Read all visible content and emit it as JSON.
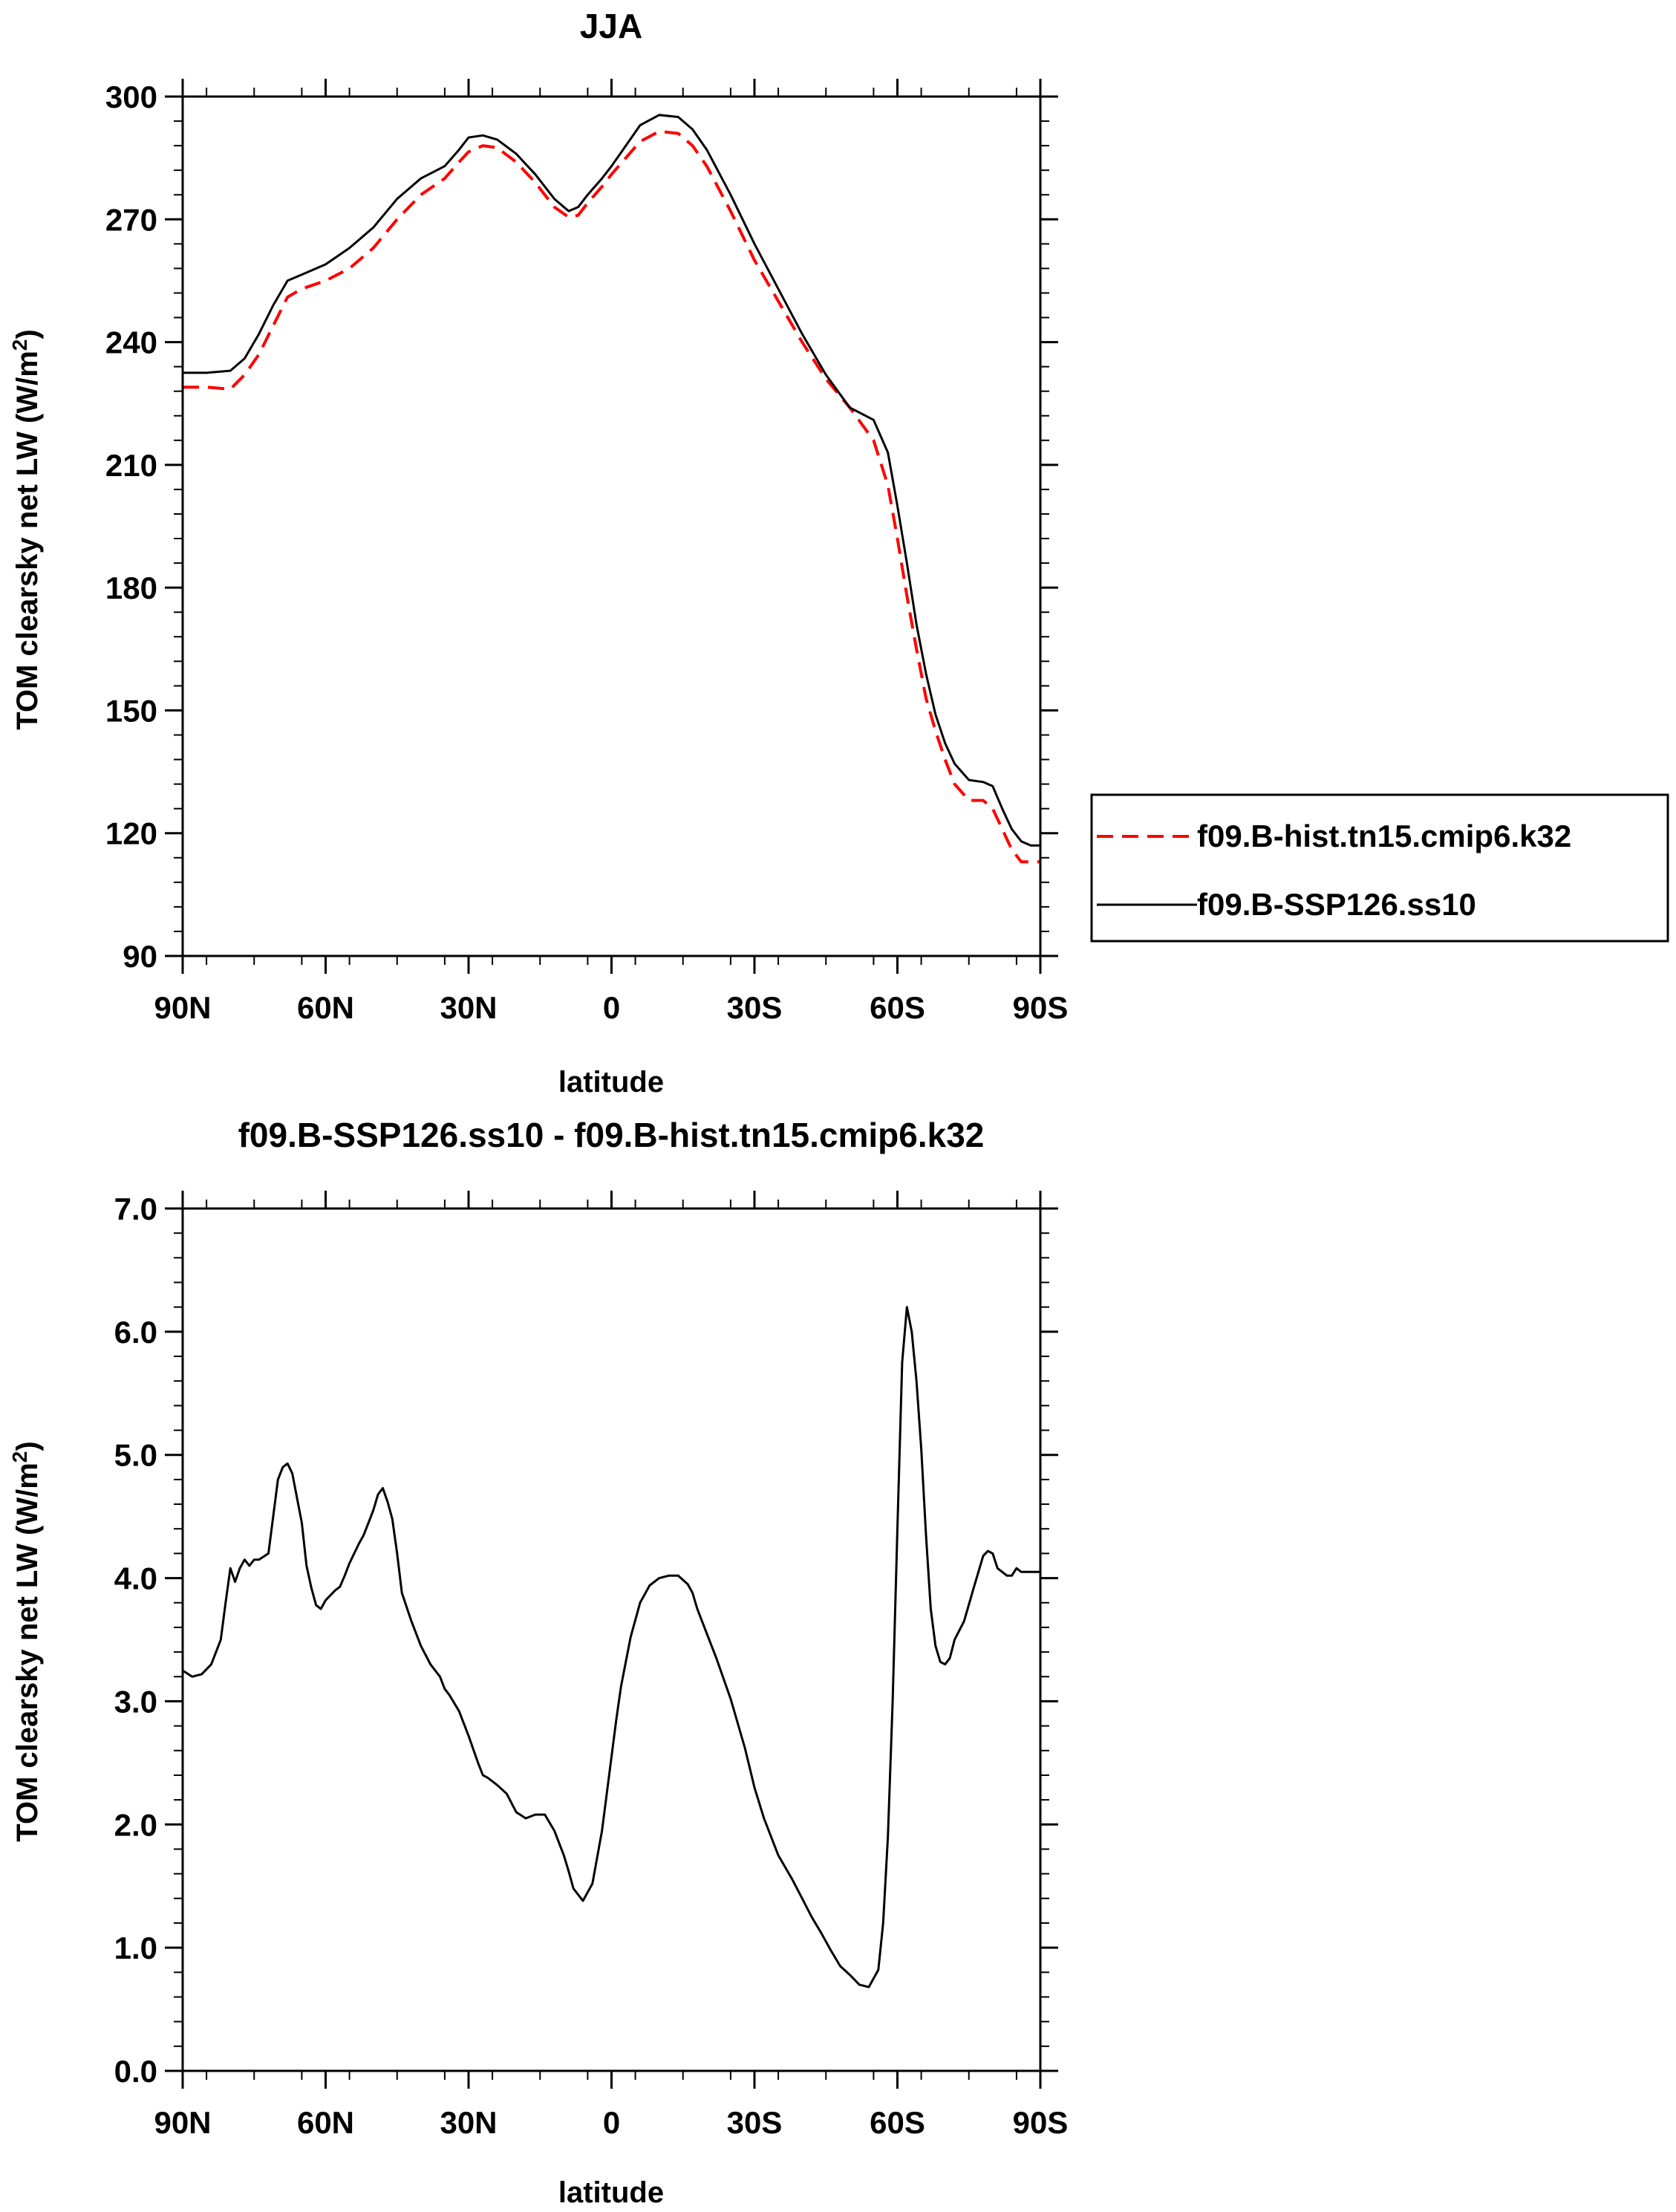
{
  "chart_data": [
    {
      "type": "line",
      "title": "JJA",
      "xlabel": "latitude",
      "ylabel": "TOM clearsky net LW (W/m",
      "ylabel_sup": "2",
      "ylabel_close": ")",
      "xlim": [
        90,
        -90
      ],
      "ylim": [
        90,
        300
      ],
      "xticks": [
        90,
        60,
        30,
        0,
        -30,
        -60,
        -90
      ],
      "xtick_labels": [
        "90N",
        "60N",
        "30N",
        "0",
        "30S",
        "60S",
        "90S"
      ],
      "yticks": [
        90,
        120,
        150,
        180,
        210,
        240,
        270,
        300
      ],
      "ytick_labels": [
        "90",
        "120",
        "150",
        "180",
        "210",
        "240",
        "270",
        "300"
      ],
      "legend_position": "right",
      "series": [
        {
          "name": "f09.B-hist.tn15.cmip6.k32",
          "color": "#ff0000",
          "style": "dashed",
          "x": [
            90,
            85,
            80,
            77,
            74,
            71,
            68,
            65,
            60,
            55,
            50,
            45,
            40,
            35,
            32,
            30,
            27,
            24,
            20,
            16,
            12,
            9,
            7,
            5,
            2,
            0,
            -3,
            -6,
            -10,
            -14,
            -17,
            -20,
            -25,
            -30,
            -35,
            -40,
            -45,
            -50,
            -55,
            -58,
            -60,
            -62,
            -64,
            -66,
            -68,
            -70,
            -72,
            -75,
            -78,
            -80,
            -82,
            -84,
            -86,
            -88,
            -90
          ],
          "y": [
            229,
            229,
            228.5,
            232,
            237,
            244,
            251,
            253,
            255,
            258,
            263,
            270,
            276,
            280,
            284,
            286.5,
            288,
            287.5,
            284,
            279,
            273,
            270.5,
            271,
            274,
            278,
            281,
            285,
            289,
            291.5,
            291,
            288,
            283,
            272,
            260,
            250,
            240,
            231,
            224,
            216,
            205,
            192,
            178,
            165,
            153,
            145,
            138,
            132,
            128,
            128,
            126,
            121,
            116,
            113,
            113,
            113
          ]
        },
        {
          "name": "f09.B-SSP126.ss10",
          "color": "#000000",
          "style": "solid",
          "x": [
            90,
            85,
            80,
            77,
            74,
            71,
            68,
            65,
            60,
            55,
            50,
            45,
            40,
            35,
            32,
            30,
            27,
            24,
            20,
            16,
            12,
            9,
            7,
            5,
            2,
            0,
            -3,
            -6,
            -10,
            -14,
            -17,
            -20,
            -25,
            -30,
            -35,
            -40,
            -45,
            -50,
            -55,
            -58,
            -60,
            -62,
            -64,
            -66,
            -68,
            -70,
            -72,
            -75,
            -78,
            -80,
            -82,
            -84,
            -86,
            -88,
            -90
          ],
          "y": [
            232.5,
            232.5,
            233,
            236,
            242,
            249,
            255,
            256.5,
            259,
            263,
            268,
            275,
            280,
            283,
            287,
            290,
            290.5,
            289.5,
            286,
            281,
            275,
            272,
            273,
            276,
            280,
            283,
            288,
            293,
            295.5,
            295,
            292,
            287,
            276,
            264,
            253,
            242,
            232,
            224,
            221,
            213,
            200,
            186,
            171,
            159,
            149,
            142,
            137,
            133,
            132.5,
            131.5,
            126,
            121,
            118,
            117,
            117
          ]
        }
      ]
    },
    {
      "type": "line",
      "title": "f09.B-SSP126.ss10 - f09.B-hist.tn15.cmip6.k32",
      "xlabel": "latitude",
      "ylabel": "TOM clearsky net LW (W/m",
      "ylabel_sup": "2",
      "ylabel_close": ")",
      "xlim": [
        90,
        -90
      ],
      "ylim": [
        0,
        7
      ],
      "xticks": [
        90,
        60,
        30,
        0,
        -30,
        -60,
        -90
      ],
      "xtick_labels": [
        "90N",
        "60N",
        "30N",
        "0",
        "30S",
        "60S",
        "90S"
      ],
      "yticks": [
        0,
        1,
        2,
        3,
        4,
        5,
        6,
        7
      ],
      "ytick_labels": [
        "0.0",
        "1.0",
        "2.0",
        "3.0",
        "4.0",
        "5.0",
        "6.0",
        "7.0"
      ],
      "series": [
        {
          "name": "",
          "color": "#000000",
          "style": "solid",
          "x": [
            90,
            88,
            86,
            84,
            82,
            81,
            80,
            79,
            78,
            77,
            76,
            75,
            74,
            72,
            71,
            70,
            69,
            68,
            67,
            66,
            65,
            64,
            63,
            62,
            61,
            60,
            58,
            57,
            56,
            55,
            54,
            53,
            52,
            51,
            50,
            49,
            48,
            47,
            46,
            45,
            44,
            42,
            40,
            38,
            36,
            35,
            34,
            32,
            30,
            28,
            27,
            26,
            24,
            22,
            20,
            18,
            16,
            14,
            12,
            10,
            9,
            8,
            6,
            4,
            2,
            0,
            -1,
            -2,
            -4,
            -6,
            -8,
            -10,
            -12,
            -14,
            -16,
            -17,
            -18,
            -20,
            -22,
            -25,
            -28,
            -30,
            -32,
            -35,
            -38,
            -40,
            -42,
            -44,
            -46,
            -48,
            -50,
            -52,
            -54,
            -56,
            -57,
            -58,
            -59,
            -60,
            -61,
            -62,
            -63,
            -64,
            -65,
            -66,
            -67,
            -68,
            -69,
            -70,
            -71,
            -72,
            -74,
            -76,
            -77,
            -78,
            -79,
            -80,
            -81,
            -82,
            -83,
            -84,
            -85,
            -86,
            -88,
            -89,
            -90
          ],
          "y": [
            3.25,
            3.2,
            3.22,
            3.3,
            3.5,
            3.8,
            4.08,
            3.97,
            4.08,
            4.15,
            4.1,
            4.15,
            4.15,
            4.2,
            4.5,
            4.8,
            4.9,
            4.93,
            4.85,
            4.65,
            4.45,
            4.1,
            3.92,
            3.78,
            3.75,
            3.82,
            3.9,
            3.93,
            4.02,
            4.12,
            4.2,
            4.28,
            4.35,
            4.45,
            4.55,
            4.68,
            4.73,
            4.62,
            4.48,
            4.2,
            3.88,
            3.65,
            3.45,
            3.3,
            3.2,
            3.1,
            3.05,
            2.92,
            2.72,
            2.5,
            2.4,
            2.38,
            2.32,
            2.25,
            2.1,
            2.05,
            2.08,
            2.08,
            1.95,
            1.75,
            1.62,
            1.48,
            1.38,
            1.52,
            1.95,
            2.55,
            2.85,
            3.12,
            3.52,
            3.8,
            3.94,
            4.0,
            4.02,
            4.02,
            3.95,
            3.88,
            3.75,
            3.55,
            3.35,
            3.02,
            2.62,
            2.3,
            2.05,
            1.75,
            1.55,
            1.4,
            1.25,
            1.12,
            0.98,
            0.85,
            0.78,
            0.7,
            0.68,
            0.82,
            1.2,
            1.9,
            3.0,
            4.4,
            5.75,
            6.2,
            6.0,
            5.6,
            5.05,
            4.35,
            3.75,
            3.45,
            3.32,
            3.3,
            3.35,
            3.5,
            3.65,
            3.92,
            4.05,
            4.18,
            4.22,
            4.2,
            4.08,
            4.05,
            4.02,
            4.02,
            4.08,
            4.05,
            4.05,
            4.05,
            4.05
          ]
        }
      ]
    }
  ]
}
